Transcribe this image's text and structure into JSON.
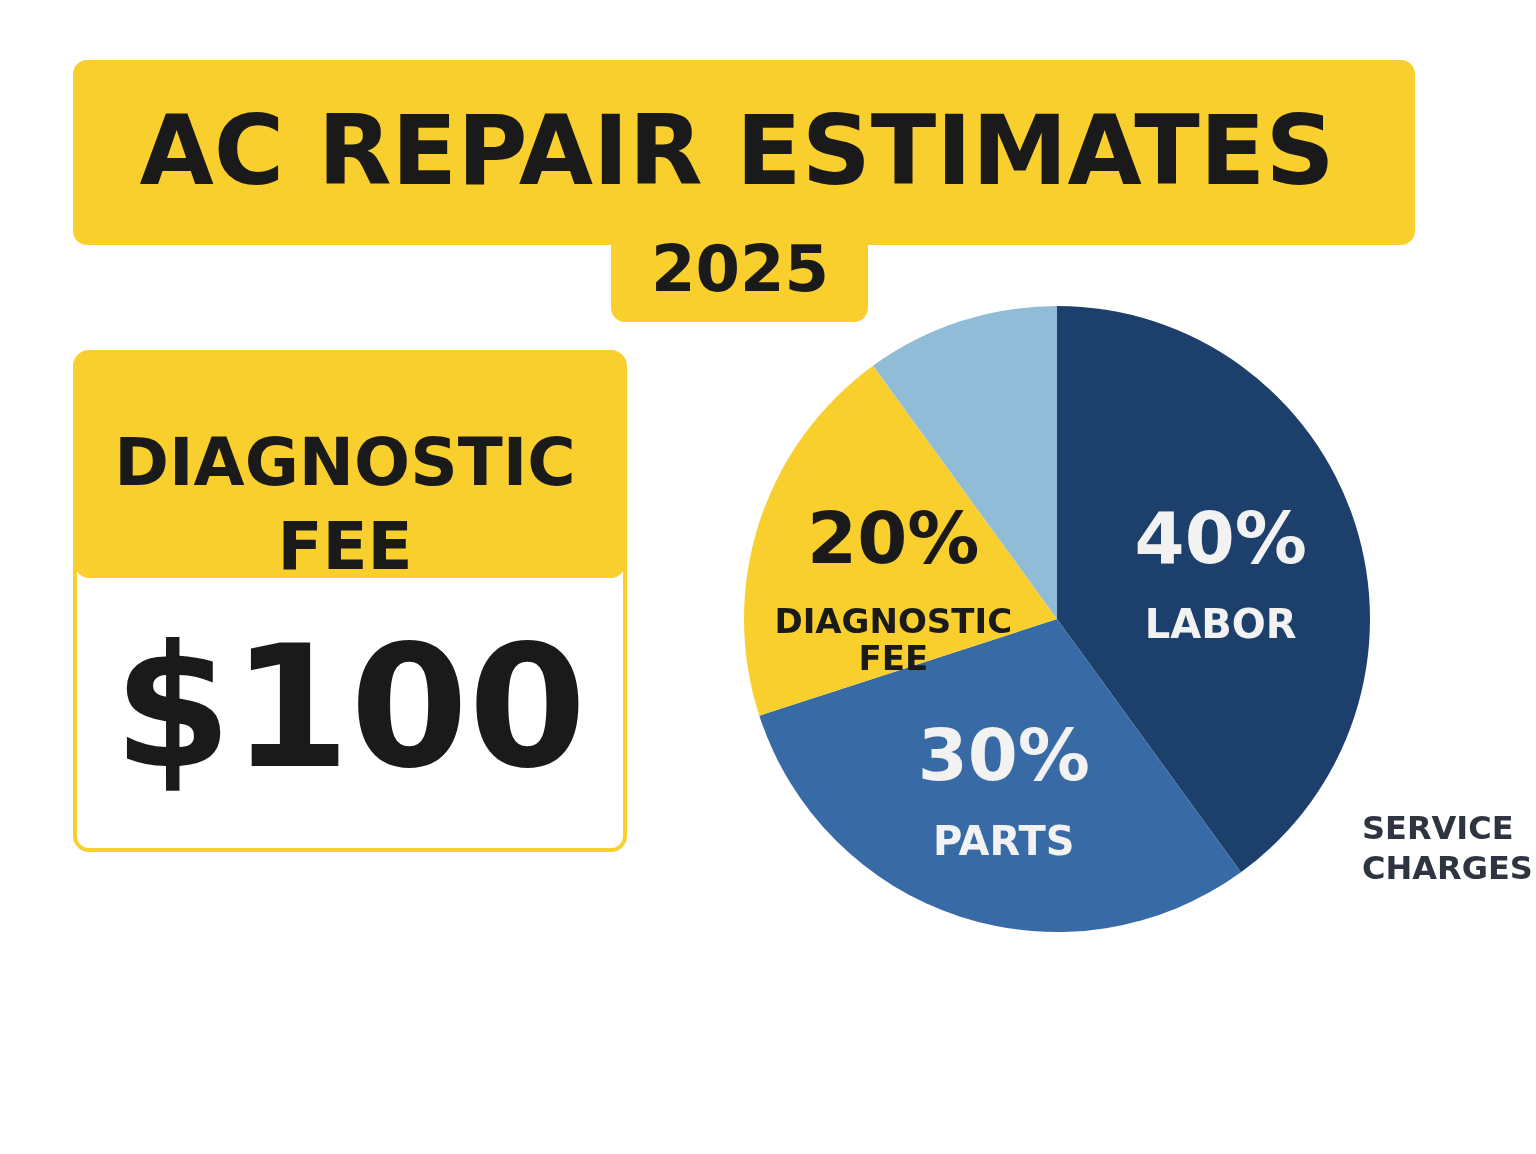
{
  "chart_data": {
    "type": "pie",
    "title": "AC REPAIR ESTIMATES",
    "subtitle": "2025",
    "categories": [
      "LABOR",
      "PARTS",
      "DIAGNOSTIC FEE",
      null
    ],
    "values": [
      40,
      30,
      20,
      10
    ],
    "colors": [
      "#1c3f6b",
      "#386ba6",
      "#f9cf2e",
      "#90bcd8"
    ],
    "value_labels": [
      "40%",
      "30%",
      "20%",
      null
    ],
    "annotations": [
      "DIAGNOSTIC FEE",
      "$100",
      "SERVICE CHARGES"
    ]
  }
}
